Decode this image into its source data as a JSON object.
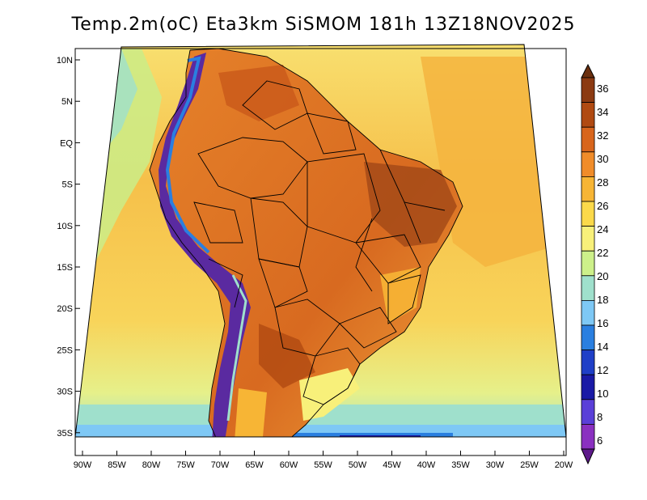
{
  "title": "Temp.2m(oC) Eta3km SiSMOM 181h 13Z18NOV2025",
  "latitude_labels": [
    "10N",
    "5N",
    "EQ",
    "5S",
    "10S",
    "15S",
    "20S",
    "25S",
    "30S",
    "35S"
  ],
  "longitude_labels": [
    "90W",
    "85W",
    "80W",
    "75W",
    "70W",
    "65W",
    "60W",
    "55W",
    "50W",
    "45W",
    "40W",
    "35W",
    "30W",
    "25W",
    "20W"
  ],
  "colorbar": {
    "labels": [
      "36",
      "34",
      "32",
      "30",
      "28",
      "26",
      "24",
      "22",
      "20",
      "18",
      "16",
      "14",
      "12",
      "10",
      "8",
      "6"
    ],
    "colors": [
      "#6b2f0f",
      "#8b3a12",
      "#b04a12",
      "#d8651c",
      "#f08c2a",
      "#f7b535",
      "#fbd94a",
      "#f8f07a",
      "#cdf08a",
      "#9fe0cc",
      "#7ec8f5",
      "#2a7fe0",
      "#1f3fc7",
      "#1a1aa6",
      "#5a3fd8",
      "#8a30c0",
      "#5d1a8a"
    ]
  },
  "map": {
    "ocean_warm": "#f6c04a",
    "ocean_mid": "#f8e070",
    "ocean_cool": "#d6f08a",
    "land_hot": "#e07a24",
    "land_very_hot": "#a54a18",
    "andes_cold": "#5a2aa0"
  }
}
